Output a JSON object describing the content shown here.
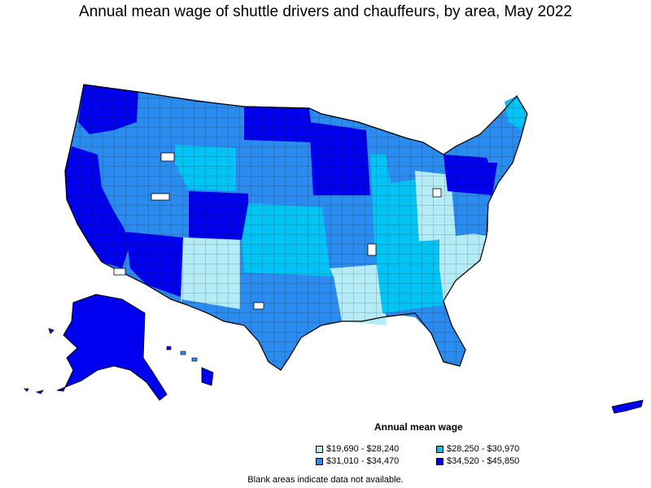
{
  "title": "Annual mean wage of shuttle drivers and chauffeurs, by area, May 2022",
  "legend": {
    "title": "Annual mean wage",
    "items": [
      {
        "label": "$19,690 - $28,240",
        "color": "#b3ecf7"
      },
      {
        "label": "$28,250 - $30,970",
        "color": "#00c4f5"
      },
      {
        "label": "$31,010 - $34,470",
        "color": "#2a8cf0"
      },
      {
        "label": "$34,520 - $45,850",
        "color": "#0000f0"
      }
    ]
  },
  "footnote": "Blank areas indicate data not available."
}
